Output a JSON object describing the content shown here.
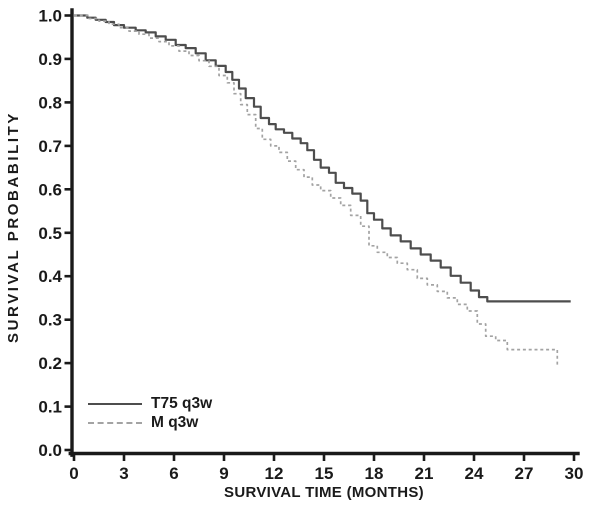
{
  "figure": {
    "background": "#ffffff",
    "text_color": "#1a1a1a",
    "axis_color": "#1a1a1a"
  },
  "chart_data": {
    "type": "line",
    "subtype": "kaplan_meier_step_curve",
    "title": "",
    "xlabel": "SURVIVAL TIME (MONTHS)",
    "ylabel": "SURVIVAL PROBABILITY",
    "xlim": [
      0,
      30
    ],
    "ylim": [
      0.0,
      1.0
    ],
    "x_ticks": [
      0,
      3,
      6,
      9,
      12,
      15,
      18,
      21,
      24,
      27,
      30
    ],
    "y_ticks": [
      {
        "value": 0.0,
        "label": "0.0"
      },
      {
        "value": 0.1,
        "label": "0.1"
      },
      {
        "value": 0.2,
        "label": "0.2"
      },
      {
        "value": 0.3,
        "label": "0.3"
      },
      {
        "value": 0.4,
        "label": "0.4"
      },
      {
        "value": 0.5,
        "label": "0.5"
      },
      {
        "value": 0.6,
        "label": "0.6"
      },
      {
        "value": 0.7,
        "label": "0.7"
      },
      {
        "value": 0.8,
        "label": "0.8"
      },
      {
        "value": 0.9,
        "label": "0.9"
      },
      {
        "value": 1.0,
        "label": "1.0"
      }
    ],
    "grid": false,
    "legend_position": "lower-left",
    "series": [
      {
        "name": "T75 q3w",
        "line_style": "solid",
        "color": "#4d4d4d",
        "points": [
          [
            0,
            1.0
          ],
          [
            0.8,
            0.995
          ],
          [
            1.3,
            0.99
          ],
          [
            1.9,
            0.985
          ],
          [
            2.4,
            0.978
          ],
          [
            3.0,
            0.972
          ],
          [
            3.7,
            0.966
          ],
          [
            4.3,
            0.961
          ],
          [
            4.9,
            0.952
          ],
          [
            5.5,
            0.944
          ],
          [
            6.1,
            0.932
          ],
          [
            6.7,
            0.925
          ],
          [
            7.3,
            0.913
          ],
          [
            7.9,
            0.897
          ],
          [
            8.5,
            0.884
          ],
          [
            9.1,
            0.87
          ],
          [
            9.5,
            0.852
          ],
          [
            9.9,
            0.832
          ],
          [
            10.3,
            0.81
          ],
          [
            10.8,
            0.79
          ],
          [
            11.2,
            0.764
          ],
          [
            11.7,
            0.75
          ],
          [
            12.1,
            0.738
          ],
          [
            12.6,
            0.73
          ],
          [
            13.1,
            0.717
          ],
          [
            13.6,
            0.706
          ],
          [
            14.0,
            0.69
          ],
          [
            14.4,
            0.668
          ],
          [
            14.8,
            0.65
          ],
          [
            15.3,
            0.638
          ],
          [
            15.7,
            0.615
          ],
          [
            16.2,
            0.603
          ],
          [
            16.7,
            0.59
          ],
          [
            17.2,
            0.574
          ],
          [
            17.6,
            0.545
          ],
          [
            18.0,
            0.53
          ],
          [
            18.5,
            0.51
          ],
          [
            19.0,
            0.494
          ],
          [
            19.6,
            0.48
          ],
          [
            20.2,
            0.464
          ],
          [
            20.8,
            0.45
          ],
          [
            21.4,
            0.436
          ],
          [
            22.0,
            0.42
          ],
          [
            22.6,
            0.401
          ],
          [
            23.2,
            0.385
          ],
          [
            23.8,
            0.367
          ],
          [
            24.3,
            0.352
          ],
          [
            24.8,
            0.342
          ],
          [
            29.8,
            0.342
          ]
        ]
      },
      {
        "name": "M q3w",
        "line_style": "dashed",
        "color": "#a3a3a3",
        "points": [
          [
            0,
            1.0
          ],
          [
            0.9,
            0.993
          ],
          [
            1.5,
            0.987
          ],
          [
            2.1,
            0.98
          ],
          [
            2.7,
            0.972
          ],
          [
            3.3,
            0.964
          ],
          [
            3.9,
            0.957
          ],
          [
            4.5,
            0.948
          ],
          [
            5.1,
            0.94
          ],
          [
            5.7,
            0.93
          ],
          [
            6.3,
            0.918
          ],
          [
            6.9,
            0.908
          ],
          [
            7.5,
            0.896
          ],
          [
            8.1,
            0.883
          ],
          [
            8.7,
            0.862
          ],
          [
            9.2,
            0.845
          ],
          [
            9.6,
            0.82
          ],
          [
            10.0,
            0.795
          ],
          [
            10.4,
            0.772
          ],
          [
            10.9,
            0.74
          ],
          [
            11.3,
            0.715
          ],
          [
            11.8,
            0.7
          ],
          [
            12.3,
            0.685
          ],
          [
            12.8,
            0.665
          ],
          [
            13.3,
            0.645
          ],
          [
            13.8,
            0.628
          ],
          [
            14.3,
            0.61
          ],
          [
            14.8,
            0.597
          ],
          [
            15.4,
            0.58
          ],
          [
            16.0,
            0.563
          ],
          [
            16.6,
            0.54
          ],
          [
            17.2,
            0.515
          ],
          [
            17.7,
            0.47
          ],
          [
            18.2,
            0.455
          ],
          [
            18.8,
            0.443
          ],
          [
            19.4,
            0.43
          ],
          [
            20.0,
            0.415
          ],
          [
            20.6,
            0.395
          ],
          [
            21.2,
            0.38
          ],
          [
            21.8,
            0.365
          ],
          [
            22.4,
            0.35
          ],
          [
            23.0,
            0.335
          ],
          [
            23.6,
            0.32
          ],
          [
            24.2,
            0.29
          ],
          [
            24.7,
            0.262
          ],
          [
            25.3,
            0.252
          ],
          [
            26.0,
            0.231
          ],
          [
            29.0,
            0.231
          ],
          [
            29.0,
            0.19
          ]
        ]
      }
    ]
  }
}
